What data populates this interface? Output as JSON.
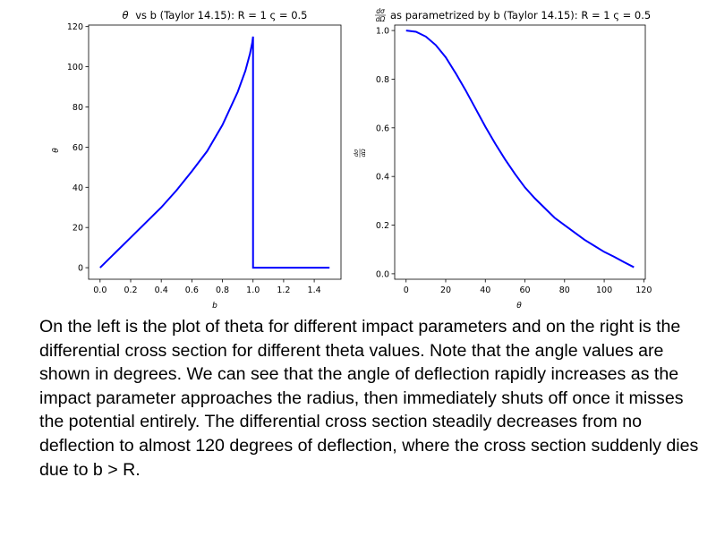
{
  "chart_data": [
    {
      "type": "line",
      "title_prefix": "θ",
      "title": "vs b (Taylor 14.15): R = 1 ς = 0.5",
      "xlabel": "b",
      "ylabel": "θ",
      "xlim": [
        -0.075,
        1.575
      ],
      "ylim": [
        -5.75,
        120.75
      ],
      "xticks": [
        "0.0",
        "0.2",
        "0.4",
        "0.6",
        "0.8",
        "1.0",
        "1.2",
        "1.4"
      ],
      "xtick_values": [
        0,
        0.2,
        0.4,
        0.6,
        0.8,
        1.0,
        1.2,
        1.4
      ],
      "yticks": [
        "0",
        "20",
        "40",
        "60",
        "80",
        "100",
        "120"
      ],
      "ytick_values": [
        0,
        20,
        40,
        60,
        80,
        100,
        120
      ],
      "grid": false,
      "series": [
        {
          "color": "#0000ff",
          "x": [
            0,
            0.1,
            0.2,
            0.3,
            0.4,
            0.5,
            0.6,
            0.7,
            0.8,
            0.9,
            0.95,
            0.98,
            0.995,
            1.0,
            1.0,
            1.1,
            1.2,
            1.3,
            1.4,
            1.5
          ],
          "y": [
            0,
            7.5,
            15,
            22.5,
            30,
            38.5,
            48,
            58,
            71,
            87.5,
            98,
            106.5,
            112,
            115,
            0,
            0,
            0,
            0,
            0,
            0
          ]
        }
      ]
    },
    {
      "type": "line",
      "title_fraction_num": "dσ",
      "title_fraction_den": "dΩ",
      "title": "as parametrized by b (Taylor 14.15): R = 1 ς = 0.5",
      "xlabel": "θ",
      "ylabel_num": "dσ",
      "ylabel_den": "dΩ",
      "xlim": [
        -5.75,
        120.75
      ],
      "ylim": [
        -0.0225,
        1.0225
      ],
      "xticks": [
        "0",
        "20",
        "40",
        "60",
        "80",
        "100",
        "120"
      ],
      "xtick_values": [
        0,
        20,
        40,
        60,
        80,
        100,
        120
      ],
      "yticks": [
        "0.0",
        "0.2",
        "0.4",
        "0.6",
        "0.8",
        "1.0"
      ],
      "ytick_values": [
        0,
        0.2,
        0.4,
        0.6,
        0.8,
        1.0
      ],
      "grid": false,
      "series": [
        {
          "color": "#0000ff",
          "x": [
            0,
            5,
            10,
            15,
            20,
            25,
            30,
            35,
            40,
            45,
            50,
            55,
            60,
            65,
            70,
            75,
            80,
            85,
            90,
            95,
            100,
            105,
            110,
            115
          ],
          "y": [
            1.0,
            0.995,
            0.975,
            0.94,
            0.89,
            0.825,
            0.755,
            0.68,
            0.605,
            0.535,
            0.47,
            0.41,
            0.355,
            0.31,
            0.27,
            0.23,
            0.2,
            0.17,
            0.14,
            0.115,
            0.09,
            0.07,
            0.048,
            0.027
          ]
        }
      ]
    }
  ],
  "caption": "On the left is the plot of theta for different impact parameters and on the right is the differential cross section for different theta values. Note that the angle values are shown in degrees. We can see that the angle of deflection rapidly increases as the impact parameter approaches the radius, then immediately shuts off once it misses the potential entirely. The differential cross section steadily decreases from no deflection to almost 120 degrees of deflection, where the cross section suddenly dies due to b > R."
}
